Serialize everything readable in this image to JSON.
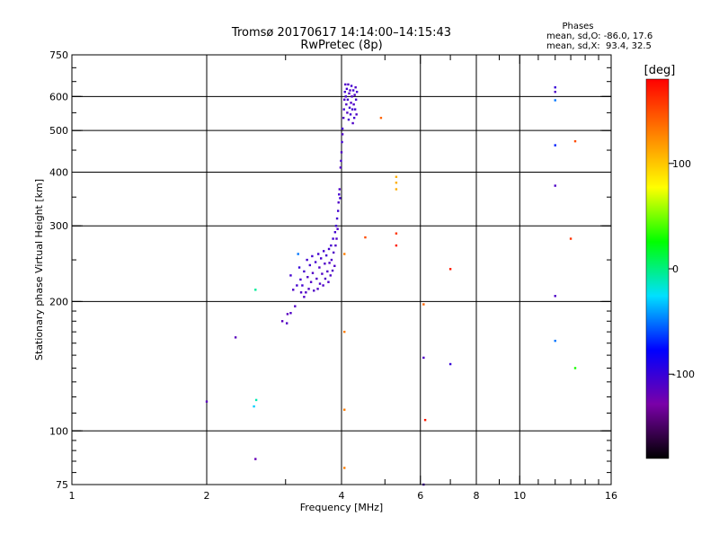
{
  "chart_data": {
    "type": "scatter",
    "title": "Tromsø 20170617 14:14:00–14:15:43",
    "subtitle": "RwPretec (8p)",
    "xlabel": "Frequency [MHz]",
    "ylabel": "Stationary phase Virtual Height [km]",
    "x_scale": "log",
    "y_scale": "log",
    "xlim": [
      1,
      16
    ],
    "ylim": [
      75,
      750
    ],
    "x_ticks": [
      1,
      2,
      4,
      6,
      8,
      10,
      16
    ],
    "x_minor_ticks": [
      3,
      5,
      7,
      9,
      11,
      12,
      13,
      14,
      15
    ],
    "x_gridlines": [
      2,
      4,
      6,
      8,
      10
    ],
    "y_ticks": [
      75,
      100,
      200,
      300,
      400,
      500,
      600,
      750
    ],
    "y_gridlines": [
      100,
      200,
      300,
      400,
      500,
      600
    ],
    "grid": true,
    "colorbar": {
      "label": "[deg]",
      "min": -180,
      "max": 180,
      "ticks": [
        100,
        0,
        -100
      ],
      "stops": [
        "#000000",
        "#7a00a8",
        "#0000ff",
        "#00e0ff",
        "#00ff00",
        "#ffff00",
        "#ff8000",
        "#ff0000"
      ]
    },
    "stats": {
      "heading": "Phases",
      "line_o": "mean, sd,O: -86.0, 17.6",
      "line_x": "mean, sd,X:  93.4, 32.5"
    },
    "points": [
      [
        2.0,
        117,
        -115
      ],
      [
        2.32,
        165,
        -115
      ],
      [
        2.55,
        114,
        -30
      ],
      [
        2.58,
        118,
        -10
      ],
      [
        2.57,
        213,
        -5
      ],
      [
        2.57,
        86,
        -120
      ],
      [
        2.95,
        180,
        -115
      ],
      [
        3.02,
        178,
        -110
      ],
      [
        3.03,
        187,
        -115
      ],
      [
        3.08,
        188,
        -110
      ],
      [
        3.12,
        213,
        -110
      ],
      [
        3.08,
        230,
        -105
      ],
      [
        3.15,
        195,
        -110
      ],
      [
        3.18,
        218,
        -105
      ],
      [
        3.2,
        258,
        -50
      ],
      [
        3.22,
        240,
        -100
      ],
      [
        3.24,
        225,
        -105
      ],
      [
        3.25,
        210,
        -110
      ],
      [
        3.27,
        218,
        -105
      ],
      [
        3.3,
        205,
        -110
      ],
      [
        3.3,
        235,
        -105
      ],
      [
        3.33,
        210,
        -110
      ],
      [
        3.35,
        250,
        -105
      ],
      [
        3.36,
        228,
        -110
      ],
      [
        3.38,
        214,
        -110
      ],
      [
        3.4,
        243,
        -105
      ],
      [
        3.42,
        222,
        -110
      ],
      [
        3.44,
        255,
        -105
      ],
      [
        3.45,
        233,
        -110
      ],
      [
        3.47,
        212,
        -110
      ],
      [
        3.5,
        247,
        -105
      ],
      [
        3.52,
        226,
        -110
      ],
      [
        3.54,
        214,
        -110
      ],
      [
        3.55,
        258,
        -105
      ],
      [
        3.57,
        240,
        -110
      ],
      [
        3.58,
        220,
        -110
      ],
      [
        3.6,
        252,
        -105
      ],
      [
        3.62,
        232,
        -110
      ],
      [
        3.64,
        218,
        -110
      ],
      [
        3.65,
        262,
        -105
      ],
      [
        3.67,
        245,
        -110
      ],
      [
        3.68,
        226,
        -110
      ],
      [
        3.7,
        256,
        -105
      ],
      [
        3.72,
        235,
        -110
      ],
      [
        3.74,
        222,
        -110
      ],
      [
        3.75,
        265,
        -105
      ],
      [
        3.76,
        246,
        -110
      ],
      [
        3.78,
        230,
        -110
      ],
      [
        3.79,
        270,
        -105
      ],
      [
        3.8,
        250,
        -110
      ],
      [
        3.82,
        236,
        -110
      ],
      [
        3.83,
        280,
        -105
      ],
      [
        3.84,
        260,
        -110
      ],
      [
        3.86,
        242,
        -110
      ],
      [
        3.87,
        290,
        -105
      ],
      [
        3.88,
        270,
        -110
      ],
      [
        3.89,
        300,
        -105
      ],
      [
        3.9,
        280,
        -110
      ],
      [
        3.91,
        312,
        -105
      ],
      [
        3.92,
        295,
        -110
      ],
      [
        3.93,
        325,
        -105
      ],
      [
        3.94,
        340,
        -110
      ],
      [
        3.95,
        355,
        -105
      ],
      [
        3.96,
        365,
        -110
      ],
      [
        3.97,
        348,
        -105
      ],
      [
        3.98,
        410,
        -110
      ],
      [
        3.99,
        425,
        -105
      ],
      [
        4.0,
        445,
        -110
      ],
      [
        4.01,
        470,
        -105
      ],
      [
        4.02,
        490,
        -110
      ],
      [
        4.02,
        505,
        -105
      ],
      [
        4.04,
        535,
        -110
      ],
      [
        4.05,
        560,
        -105
      ],
      [
        4.06,
        590,
        -110
      ],
      [
        4.07,
        615,
        -105
      ],
      [
        4.08,
        640,
        -110
      ],
      [
        4.09,
        600,
        -105
      ],
      [
        4.1,
        575,
        -110
      ],
      [
        4.11,
        625,
        -105
      ],
      [
        4.12,
        550,
        -110
      ],
      [
        4.13,
        590,
        -105
      ],
      [
        4.14,
        640,
        -110
      ],
      [
        4.15,
        530,
        -105
      ],
      [
        4.16,
        610,
        -110
      ],
      [
        4.17,
        565,
        -105
      ],
      [
        4.18,
        620,
        -110
      ],
      [
        4.19,
        545,
        -105
      ],
      [
        4.2,
        580,
        -110
      ],
      [
        4.21,
        635,
        -105
      ],
      [
        4.22,
        600,
        -110
      ],
      [
        4.23,
        560,
        -105
      ],
      [
        4.24,
        520,
        -110
      ],
      [
        4.25,
        620,
        -105
      ],
      [
        4.26,
        575,
        -110
      ],
      [
        4.27,
        535,
        -105
      ],
      [
        4.28,
        605,
        -110
      ],
      [
        4.29,
        560,
        -105
      ],
      [
        4.3,
        630,
        -110
      ],
      [
        4.31,
        590,
        -105
      ],
      [
        4.32,
        545,
        -110
      ],
      [
        4.33,
        615,
        -105
      ],
      [
        4.06,
        258,
        130
      ],
      [
        4.06,
        170,
        130
      ],
      [
        4.06,
        112,
        130
      ],
      [
        4.06,
        82,
        130
      ],
      [
        4.52,
        282,
        150
      ],
      [
        4.9,
        535,
        140
      ],
      [
        5.3,
        390,
        110
      ],
      [
        5.3,
        378,
        110
      ],
      [
        5.3,
        365,
        110
      ],
      [
        5.3,
        288,
        160
      ],
      [
        5.3,
        270,
        170
      ],
      [
        6.1,
        197,
        140
      ],
      [
        6.1,
        148,
        -110
      ],
      [
        6.15,
        106,
        170
      ],
      [
        6.1,
        75,
        -110
      ],
      [
        7.0,
        238,
        170
      ],
      [
        7.0,
        143,
        -100
      ],
      [
        12.0,
        630,
        -100
      ],
      [
        12.0,
        615,
        -110
      ],
      [
        12.0,
        588,
        -50
      ],
      [
        12.0,
        462,
        -70
      ],
      [
        12.0,
        372,
        -110
      ],
      [
        12.0,
        206,
        -110
      ],
      [
        12.0,
        162,
        -50
      ],
      [
        13.3,
        472,
        150
      ],
      [
        13.0,
        280,
        160
      ],
      [
        13.3,
        140,
        30
      ]
    ]
  }
}
